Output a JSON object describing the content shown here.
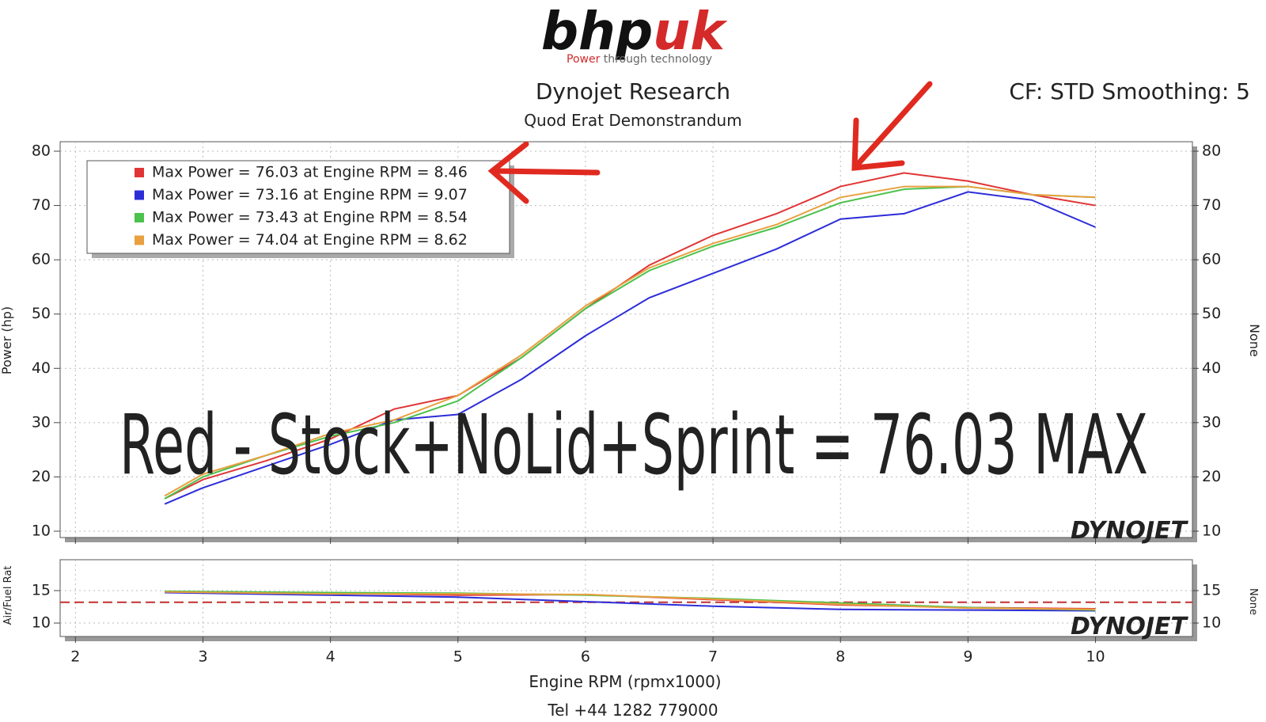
{
  "logo": {
    "name": [
      "bhp",
      "uk"
    ],
    "tagline": [
      "Power",
      "through",
      "technology"
    ]
  },
  "header": {
    "title": "Dynojet Research",
    "subtitle": "Quod Erat Demonstrandum",
    "settings": "CF: STD Smoothing: 5"
  },
  "watermark": "DYNOJET",
  "footer": "Tel +44 1282 779000",
  "chart_data": [
    {
      "type": "line",
      "ylabel": "Power (hp)",
      "y2label": "None",
      "annotation": "Red - Stock+NoLid+Sprint  = 76.03 MAX",
      "legend": "upper left",
      "grid": true,
      "x": [
        2.7,
        3,
        3.5,
        4,
        4.5,
        5,
        5.5,
        6,
        6.5,
        7,
        7.5,
        8,
        8.5,
        9,
        9.5,
        10
      ],
      "xlim": [
        1.88,
        10.76
      ],
      "xticks": [
        2,
        3,
        4,
        5,
        6,
        7,
        8,
        9,
        10
      ],
      "ylim": [
        8.83,
        81.75
      ],
      "yticks": [
        10,
        20,
        30,
        40,
        50,
        60,
        70,
        80
      ],
      "series": [
        {
          "name": "Max Power = 76.03 at Engine RPM = 8.46",
          "color": "#e03535",
          "values": [
            16,
            19.5,
            23,
            27,
            32.5,
            35,
            42,
            51,
            59,
            64.5,
            68.5,
            73.5,
            76,
            74.5,
            72,
            70
          ]
        },
        {
          "name": "Max Power = 73.16 at Engine RPM = 9.07",
          "color": "#2d2dd8",
          "values": [
            15,
            18,
            22,
            26,
            30.5,
            31.5,
            38,
            46,
            53,
            57.5,
            62,
            67.5,
            68.5,
            72.5,
            71,
            66
          ]
        },
        {
          "name": "Max Power = 73.43 at Engine RPM = 8.54",
          "color": "#4cc24c",
          "values": [
            16,
            20,
            24,
            27.5,
            30,
            34,
            42,
            51,
            58,
            62.5,
            66,
            70.5,
            73,
            73.5,
            72,
            71.5
          ]
        },
        {
          "name": "Max Power = 74.04 at Engine RPM = 8.62",
          "color": "#e8a040",
          "values": [
            16.5,
            20.5,
            24,
            28,
            30.5,
            35,
            42.5,
            51.5,
            58.5,
            63,
            66.5,
            71.5,
            73.5,
            73.5,
            72,
            71.5
          ]
        }
      ]
    },
    {
      "type": "line",
      "ylabel": "Air/Fuel Rat",
      "y2label": "None",
      "xlabel": "Engine RPM (rpmx1000)",
      "grid": true,
      "x": [
        2.7,
        4,
        5,
        6,
        7,
        8,
        9,
        10
      ],
      "xlim": [
        1.88,
        10.76
      ],
      "xticks": [
        2,
        3,
        4,
        5,
        6,
        7,
        8,
        9,
        10
      ],
      "ylim": [
        7.93,
        19.76
      ],
      "yticks": [
        10,
        15
      ],
      "reference": 13.2,
      "reference_color": "#c03030",
      "series": [
        {
          "color": "#e03535",
          "values": [
            14.8,
            14.6,
            14.3,
            14.4,
            13.6,
            12.8,
            12.4,
            12.2
          ]
        },
        {
          "color": "#2d2dd8",
          "values": [
            14.7,
            14.3,
            14.0,
            13.3,
            12.6,
            12.1,
            12.0,
            11.9
          ]
        },
        {
          "color": "#4cc24c",
          "values": [
            14.9,
            14.7,
            14.6,
            14.3,
            13.8,
            13.1,
            12.4,
            12.0
          ]
        },
        {
          "color": "#e8a040",
          "values": [
            14.8,
            14.5,
            14.5,
            14.4,
            13.7,
            12.9,
            12.3,
            12.1
          ]
        }
      ]
    }
  ]
}
